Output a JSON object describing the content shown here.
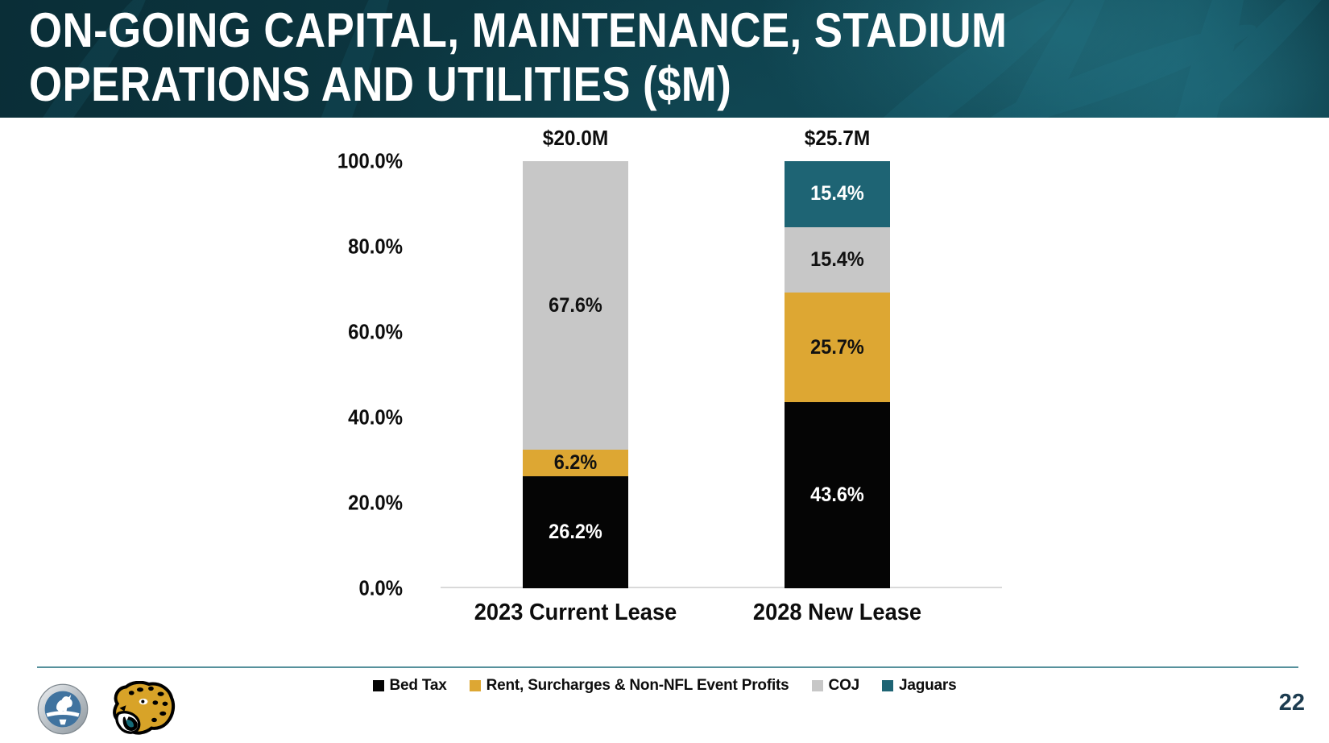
{
  "slide": {
    "title_line1": "ON-GOING CAPITAL, MAINTENANCE, STADIUM",
    "title_line2": "OPERATIONS AND UTILITIES ($M)",
    "page_number": "22"
  },
  "footer": {
    "logos": [
      "city-of-jacksonville-seal",
      "jacksonville-jaguars-logo"
    ]
  },
  "colors": {
    "header_teal_dark": "#0a2e37",
    "header_teal_light": "#135260",
    "bed_tax": "#050505",
    "rent_surcharges": "#dda733",
    "coj": "#c7c7c7",
    "jaguars": "#1e6474",
    "separator_line": "#56919c",
    "page_number": "#1d3c50",
    "axis_line": "#d9d9d9"
  },
  "chart_data": {
    "type": "bar",
    "variant": "stacked-100-percent-column",
    "title": "ON-GOING CAPITAL, MAINTENANCE, STADIUM OPERATIONS AND UTILITIES ($M)",
    "categories": [
      "2023 Current Lease",
      "2028 New Lease"
    ],
    "totals": [
      "$20.0M",
      "$25.7M"
    ],
    "series": [
      {
        "name": "Bed Tax",
        "color": "#050505",
        "label_color": "#ffffff",
        "values": [
          26.2,
          43.6
        ],
        "labels": [
          "26.2%",
          "43.6%"
        ]
      },
      {
        "name": "Rent, Surcharges & Non-NFL Event Profits",
        "color": "#dda733",
        "label_color": "#111111",
        "values": [
          6.2,
          25.7
        ],
        "labels": [
          "6.2%",
          "25.7%"
        ]
      },
      {
        "name": "COJ",
        "color": "#c7c7c7",
        "label_color": "#111111",
        "values": [
          67.6,
          15.4
        ],
        "labels": [
          "67.6%",
          "15.4%"
        ]
      },
      {
        "name": "Jaguars",
        "color": "#1e6474",
        "label_color": "#ffffff",
        "values": [
          0,
          15.4
        ],
        "labels": [
          "",
          "15.4%"
        ]
      }
    ],
    "y_ticks": [
      "100.0%",
      "80.0%",
      "60.0%",
      "40.0%",
      "20.0%",
      "0.0%"
    ],
    "xlabel": "",
    "ylabel": "",
    "ylim": [
      0,
      100
    ],
    "grid": false,
    "legend_position": "bottom"
  }
}
